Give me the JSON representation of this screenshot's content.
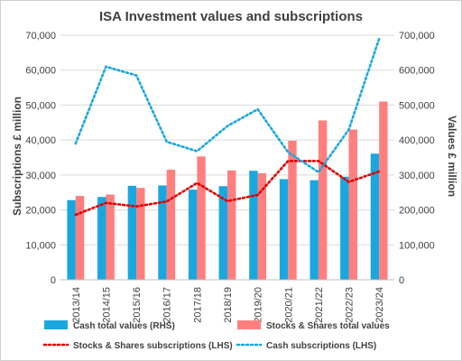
{
  "chart_data": {
    "type": "bar",
    "title": "ISA Investment values and subscriptions",
    "categories": [
      "2013/14",
      "2014/15",
      "2015/16",
      "2016/17",
      "2017/18",
      "2018/19",
      "2019/20",
      "2020/21",
      "2021/22",
      "2022/23",
      "2023/24"
    ],
    "y_left": {
      "label": "Subscriptions £ million",
      "range": [
        0,
        70000
      ],
      "ticks": [
        "0",
        "10,000",
        "20,000",
        "30,000",
        "40,000",
        "50,000",
        "60,000",
        "70,000"
      ]
    },
    "y_right": {
      "label": "Values £ million",
      "range": [
        0,
        700000
      ],
      "ticks": [
        "0",
        "100,000",
        "200,000",
        "300,000",
        "400,000",
        "500,000",
        "600,000",
        "700,000"
      ]
    },
    "grid": true,
    "legend_position": "bottom",
    "series": [
      {
        "name": "Cash total values (RHS)",
        "kind": "bar",
        "axis": "right",
        "color": "#1aa7e0",
        "values": [
          228000,
          237000,
          269000,
          270000,
          258000,
          268000,
          312000,
          288000,
          285000,
          295000,
          361000
        ]
      },
      {
        "name": "Stocks & Shares total values",
        "kind": "bar",
        "axis": "right",
        "color": "#ff7f7f",
        "values": [
          240000,
          244000,
          263000,
          315000,
          353000,
          313000,
          305000,
          398000,
          456000,
          430000,
          510000
        ]
      },
      {
        "name": "Stocks & Shares subscriptions (LHS)",
        "kind": "line",
        "axis": "left",
        "color": "#e00000",
        "dash": "dotted",
        "values": [
          18600,
          22000,
          21000,
          22400,
          27700,
          22500,
          24300,
          34000,
          34000,
          28000,
          31000
        ]
      },
      {
        "name": "Cash subscriptions (LHS)",
        "kind": "line",
        "axis": "left",
        "color": "#1aa7e0",
        "dash": "dotted",
        "values": [
          39000,
          61000,
          58500,
          39500,
          36800,
          44000,
          48800,
          36500,
          30800,
          43000,
          69000
        ]
      }
    ]
  }
}
